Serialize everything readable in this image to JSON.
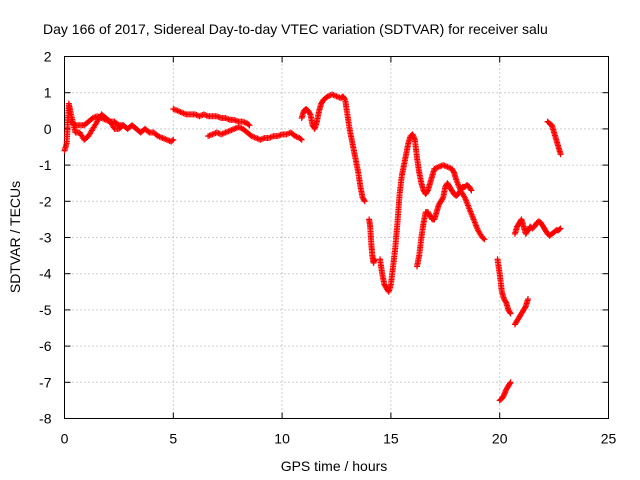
{
  "chart_data": {
    "type": "scatter",
    "title": "Day 166 of 2017, Sidereal Day-to-day VTEC variation (SDTVAR) for receiver salu",
    "xlabel": "GPS time / hours",
    "ylabel": "SDTVAR / TECUs",
    "xlim": [
      0,
      25
    ],
    "ylim": [
      -8,
      2
    ],
    "xticks": [
      "0",
      "5",
      "10",
      "15",
      "20",
      "25"
    ],
    "yticks": [
      "2",
      "1",
      "0",
      "-1",
      "-2",
      "-3",
      "-4",
      "-5",
      "-6",
      "-7",
      "-8"
    ],
    "grid": true,
    "marker": "plus",
    "color": "#ff0000",
    "segments": [
      [
        [
          0.0,
          -0.6
        ],
        [
          0.1,
          -0.4
        ],
        [
          0.2,
          0.7
        ],
        [
          0.3,
          0.4
        ],
        [
          0.5,
          -0.1
        ],
        [
          0.7,
          -0.1
        ],
        [
          0.9,
          -0.3
        ],
        [
          1.1,
          -0.2
        ],
        [
          1.3,
          0.0
        ],
        [
          1.5,
          0.2
        ],
        [
          1.7,
          0.4
        ],
        [
          1.9,
          0.3
        ],
        [
          2.1,
          0.2
        ],
        [
          2.3,
          0.0
        ],
        [
          2.5,
          0.0
        ],
        [
          2.7,
          0.1
        ],
        [
          2.9,
          0.0
        ],
        [
          3.1,
          0.1
        ],
        [
          3.3,
          0.0
        ],
        [
          3.5,
          -0.1
        ],
        [
          3.7,
          0.0
        ],
        [
          3.9,
          -0.1
        ],
        [
          4.1,
          -0.1
        ],
        [
          4.3,
          -0.2
        ],
        [
          4.5,
          -0.25
        ],
        [
          4.7,
          -0.3
        ],
        [
          4.9,
          -0.35
        ],
        [
          5.0,
          -0.3
        ]
      ],
      [
        [
          0.3,
          0.2
        ],
        [
          0.5,
          0.1
        ],
        [
          0.7,
          0.1
        ],
        [
          0.9,
          0.1
        ],
        [
          1.1,
          0.2
        ],
        [
          1.3,
          0.3
        ],
        [
          1.5,
          0.35
        ],
        [
          1.7,
          0.3
        ],
        [
          1.9,
          0.25
        ],
        [
          2.1,
          0.2
        ],
        [
          2.3,
          0.2
        ],
        [
          2.5,
          0.1
        ],
        [
          2.7,
          0.1
        ]
      ],
      [
        [
          5.0,
          0.55
        ],
        [
          5.2,
          0.5
        ],
        [
          5.4,
          0.45
        ],
        [
          5.6,
          0.4
        ],
        [
          5.8,
          0.4
        ],
        [
          6.0,
          0.4
        ],
        [
          6.2,
          0.35
        ],
        [
          6.4,
          0.4
        ],
        [
          6.6,
          0.35
        ],
        [
          6.8,
          0.35
        ],
        [
          7.0,
          0.35
        ],
        [
          7.2,
          0.3
        ],
        [
          7.4,
          0.3
        ],
        [
          7.6,
          0.25
        ],
        [
          7.8,
          0.25
        ],
        [
          8.0,
          0.2
        ],
        [
          8.2,
          0.2
        ],
        [
          8.4,
          0.15
        ],
        [
          8.5,
          0.1
        ]
      ],
      [
        [
          6.6,
          -0.2
        ],
        [
          6.8,
          -0.15
        ],
        [
          7.0,
          -0.1
        ],
        [
          7.2,
          -0.15
        ],
        [
          7.4,
          -0.1
        ],
        [
          7.6,
          -0.05
        ],
        [
          7.8,
          0.0
        ],
        [
          8.0,
          0.05
        ],
        [
          8.2,
          0.0
        ],
        [
          8.4,
          -0.1
        ],
        [
          8.6,
          -0.2
        ],
        [
          8.8,
          -0.25
        ],
        [
          9.0,
          -0.3
        ],
        [
          9.2,
          -0.25
        ],
        [
          9.4,
          -0.25
        ],
        [
          9.6,
          -0.2
        ],
        [
          9.8,
          -0.2
        ],
        [
          10.0,
          -0.15
        ],
        [
          10.2,
          -0.15
        ],
        [
          10.4,
          -0.1
        ],
        [
          10.6,
          -0.2
        ],
        [
          10.8,
          -0.25
        ],
        [
          10.9,
          -0.3
        ]
      ],
      [
        [
          10.9,
          0.3
        ],
        [
          11.0,
          0.5
        ],
        [
          11.1,
          0.55
        ],
        [
          11.2,
          0.5
        ],
        [
          11.3,
          0.4
        ],
        [
          11.4,
          0.1
        ],
        [
          11.5,
          0.0
        ],
        [
          11.6,
          0.2
        ],
        [
          11.7,
          0.5
        ],
        [
          11.8,
          0.7
        ],
        [
          11.9,
          0.8
        ],
        [
          12.1,
          0.9
        ],
        [
          12.3,
          0.95
        ],
        [
          12.5,
          0.9
        ],
        [
          12.7,
          0.85
        ],
        [
          12.8,
          0.9
        ],
        [
          12.9,
          0.8
        ],
        [
          13.0,
          0.4
        ],
        [
          13.1,
          0.0
        ],
        [
          13.2,
          -0.3
        ],
        [
          13.3,
          -0.6
        ],
        [
          13.4,
          -0.9
        ],
        [
          13.5,
          -1.2
        ],
        [
          13.6,
          -1.6
        ],
        [
          13.7,
          -1.9
        ],
        [
          13.8,
          -2.0
        ]
      ],
      [
        [
          14.0,
          -2.5
        ],
        [
          14.05,
          -2.7
        ],
        [
          14.1,
          -3.2
        ],
        [
          14.15,
          -3.5
        ],
        [
          14.2,
          -3.7
        ],
        [
          14.25,
          -3.6
        ]
      ],
      [
        [
          14.5,
          -3.6
        ],
        [
          14.6,
          -4.0
        ],
        [
          14.7,
          -4.3
        ],
        [
          14.8,
          -4.4
        ],
        [
          14.9,
          -4.5
        ],
        [
          15.0,
          -4.3
        ],
        [
          15.1,
          -3.8
        ],
        [
          15.2,
          -3.3
        ],
        [
          15.3,
          -2.6
        ],
        [
          15.4,
          -1.8
        ],
        [
          15.5,
          -1.3
        ],
        [
          15.6,
          -1.0
        ],
        [
          15.7,
          -0.7
        ],
        [
          15.8,
          -0.4
        ],
        [
          15.9,
          -0.2
        ],
        [
          16.0,
          -0.15
        ],
        [
          16.1,
          -0.3
        ],
        [
          16.2,
          -0.8
        ],
        [
          16.3,
          -1.2
        ],
        [
          16.4,
          -1.5
        ],
        [
          16.5,
          -1.7
        ],
        [
          16.6,
          -1.8
        ],
        [
          16.7,
          -1.7
        ],
        [
          16.8,
          -1.5
        ],
        [
          16.9,
          -1.3
        ],
        [
          17.0,
          -1.1
        ],
        [
          17.2,
          -1.05
        ],
        [
          17.4,
          -1.0
        ],
        [
          17.6,
          -1.05
        ],
        [
          17.8,
          -1.1
        ],
        [
          17.9,
          -1.2
        ],
        [
          18.0,
          -1.4
        ],
        [
          18.2,
          -1.7
        ],
        [
          18.4,
          -1.9
        ],
        [
          18.6,
          -2.2
        ],
        [
          18.8,
          -2.5
        ],
        [
          19.0,
          -2.8
        ],
        [
          19.2,
          -3.0
        ],
        [
          19.3,
          -3.05
        ]
      ],
      [
        [
          16.2,
          -3.8
        ],
        [
          16.3,
          -3.5
        ],
        [
          16.4,
          -3.0
        ],
        [
          16.5,
          -2.6
        ],
        [
          16.6,
          -2.3
        ],
        [
          16.7,
          -2.3
        ],
        [
          16.8,
          -2.4
        ],
        [
          16.9,
          -2.5
        ],
        [
          17.0,
          -2.5
        ],
        [
          17.1,
          -2.3
        ],
        [
          17.2,
          -2.1
        ],
        [
          17.3,
          -2.0
        ],
        [
          17.4,
          -1.9
        ],
        [
          17.5,
          -1.6
        ],
        [
          17.6,
          -1.5
        ],
        [
          17.7,
          -1.6
        ],
        [
          17.8,
          -1.7
        ],
        [
          17.9,
          -1.8
        ],
        [
          18.0,
          -1.85
        ],
        [
          18.1,
          -1.8
        ],
        [
          18.2,
          -1.7
        ],
        [
          18.3,
          -1.6
        ],
        [
          18.4,
          -1.6
        ],
        [
          18.5,
          -1.55
        ],
        [
          18.6,
          -1.6
        ],
        [
          18.7,
          -1.7
        ]
      ],
      [
        [
          19.9,
          -3.6
        ],
        [
          20.0,
          -4.0
        ],
        [
          20.1,
          -4.5
        ],
        [
          20.2,
          -4.7
        ],
        [
          20.3,
          -4.8
        ],
        [
          20.4,
          -5.0
        ],
        [
          20.5,
          -5.1
        ]
      ],
      [
        [
          20.0,
          -7.5
        ],
        [
          20.1,
          -7.45
        ],
        [
          20.2,
          -7.35
        ],
        [
          20.3,
          -7.2
        ],
        [
          20.4,
          -7.1
        ],
        [
          20.5,
          -7.0
        ]
      ],
      [
        [
          20.7,
          -5.4
        ],
        [
          20.8,
          -5.3
        ],
        [
          20.9,
          -5.2
        ],
        [
          21.0,
          -5.1
        ],
        [
          21.1,
          -5.0
        ],
        [
          21.2,
          -4.9
        ],
        [
          21.3,
          -4.7
        ]
      ],
      [
        [
          20.7,
          -2.9
        ],
        [
          20.8,
          -2.7
        ],
        [
          20.9,
          -2.6
        ],
        [
          21.0,
          -2.5
        ],
        [
          21.1,
          -2.7
        ],
        [
          21.2,
          -2.9
        ],
        [
          21.3,
          -2.8
        ],
        [
          21.4,
          -2.7
        ],
        [
          21.5,
          -2.75
        ],
        [
          21.6,
          -2.7
        ],
        [
          21.7,
          -2.6
        ],
        [
          21.8,
          -2.55
        ],
        [
          21.9,
          -2.6
        ],
        [
          22.0,
          -2.7
        ],
        [
          22.1,
          -2.8
        ],
        [
          22.2,
          -2.9
        ],
        [
          22.3,
          -2.95
        ],
        [
          22.4,
          -2.9
        ],
        [
          22.5,
          -2.85
        ],
        [
          22.6,
          -2.8
        ],
        [
          22.7,
          -2.8
        ],
        [
          22.8,
          -2.75
        ]
      ],
      [
        [
          22.2,
          0.2
        ],
        [
          22.3,
          0.15
        ],
        [
          22.4,
          0.1
        ],
        [
          22.5,
          -0.1
        ],
        [
          22.6,
          -0.3
        ],
        [
          22.7,
          -0.5
        ],
        [
          22.8,
          -0.7
        ]
      ]
    ]
  }
}
